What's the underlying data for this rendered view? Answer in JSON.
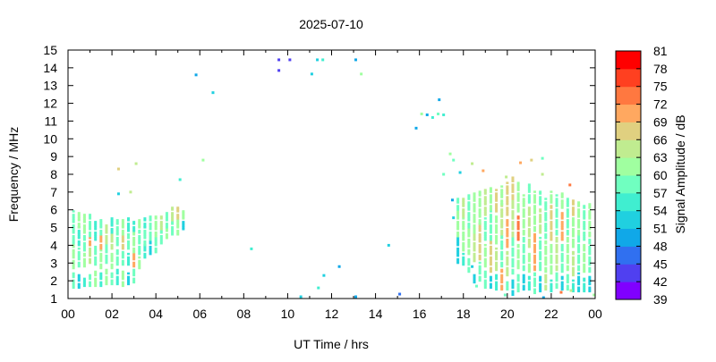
{
  "chart_data": {
    "type": "scatter",
    "title": "2025-07-10",
    "xlabel": "UT Time / hrs",
    "ylabel": "Frequency / MHz",
    "xlim": [
      0,
      24
    ],
    "ylim": [
      1,
      15
    ],
    "x_tick_labels": [
      "00",
      "02",
      "04",
      "06",
      "08",
      "10",
      "12",
      "14",
      "16",
      "18",
      "20",
      "22",
      "00"
    ],
    "y_tick_labels": [
      "1",
      "2",
      "3",
      "4",
      "5",
      "6",
      "7",
      "8",
      "9",
      "10",
      "11",
      "12",
      "13",
      "14",
      "15"
    ],
    "grid": false,
    "colorbar": {
      "label": "Signal Amplitude / dB",
      "range": [
        39,
        81
      ],
      "tick_labels": [
        "39",
        "42",
        "45",
        "48",
        "51",
        "54",
        "57",
        "60",
        "63",
        "66",
        "69",
        "72",
        "75",
        "78",
        "81"
      ],
      "colors": [
        "#8000ff",
        "#5040f0",
        "#3070f0",
        "#10a8e8",
        "#20d0e0",
        "#40eed0",
        "#70ffc0",
        "#a0ffa0",
        "#c0ec90",
        "#e0d080",
        "#ffa860",
        "#ff7840",
        "#ff4020",
        "#ff0000"
      ]
    },
    "columns": [
      {
        "t": 0.25,
        "segs": [
          [
            1.5,
            2.4,
            57
          ],
          [
            2.6,
            4.0,
            60
          ],
          [
            4.0,
            5.9,
            57
          ]
        ]
      },
      {
        "t": 0.5,
        "segs": [
          [
            1.6,
            2.3,
            51
          ],
          [
            2.8,
            3.8,
            57
          ],
          [
            4.0,
            5.0,
            54
          ],
          [
            5.0,
            5.8,
            60
          ]
        ]
      },
      {
        "t": 0.75,
        "segs": [
          [
            1.6,
            2.1,
            54
          ],
          [
            2.7,
            3.5,
            60
          ],
          [
            3.6,
            4.5,
            57
          ],
          [
            4.6,
            5.8,
            60
          ]
        ]
      },
      {
        "t": 1.0,
        "segs": [
          [
            1.7,
            2.3,
            57
          ],
          [
            3.0,
            4.0,
            63
          ],
          [
            4.0,
            4.4,
            69
          ],
          [
            4.5,
            5.7,
            57
          ]
        ]
      },
      {
        "t": 1.25,
        "segs": [
          [
            1.6,
            2.5,
            60
          ],
          [
            2.8,
            4.0,
            57
          ],
          [
            4.2,
            5.3,
            54
          ]
        ]
      },
      {
        "t": 1.5,
        "segs": [
          [
            1.7,
            2.4,
            54
          ],
          [
            2.7,
            3.7,
            60
          ],
          [
            3.8,
            4.5,
            69
          ],
          [
            4.6,
            5.5,
            57
          ]
        ]
      },
      {
        "t": 1.75,
        "segs": [
          [
            1.7,
            2.6,
            60
          ],
          [
            2.9,
            4.0,
            57
          ],
          [
            4.0,
            5.2,
            63
          ]
        ]
      },
      {
        "t": 2.0,
        "segs": [
          [
            1.8,
            2.4,
            57
          ],
          [
            2.7,
            3.5,
            60
          ],
          [
            3.8,
            4.6,
            63
          ],
          [
            4.7,
            5.6,
            54
          ]
        ]
      },
      {
        "t": 2.25,
        "segs": [
          [
            1.7,
            2.6,
            54
          ],
          [
            2.8,
            3.7,
            57
          ],
          [
            3.9,
            5.4,
            57
          ]
        ]
      },
      {
        "t": 2.5,
        "segs": [
          [
            1.7,
            2.6,
            60
          ],
          [
            2.9,
            3.6,
            57
          ],
          [
            3.8,
            4.5,
            66
          ],
          [
            4.6,
            5.5,
            60
          ]
        ]
      },
      {
        "t": 2.75,
        "segs": [
          [
            1.7,
            2.4,
            51
          ],
          [
            2.8,
            3.5,
            54
          ],
          [
            3.7,
            4.6,
            57
          ],
          [
            4.7,
            5.5,
            54
          ]
        ]
      },
      {
        "t": 3.0,
        "segs": [
          [
            1.9,
            2.6,
            57
          ],
          [
            2.8,
            3.5,
            69
          ],
          [
            3.6,
            4.8,
            60
          ],
          [
            4.8,
            5.3,
            54
          ]
        ]
      },
      {
        "t": 3.25,
        "segs": [
          [
            2.6,
            3.3,
            60
          ],
          [
            3.4,
            4.8,
            57
          ],
          [
            4.9,
            5.4,
            60
          ]
        ]
      },
      {
        "t": 3.5,
        "segs": [
          [
            3.3,
            4.0,
            54
          ],
          [
            4.0,
            5.0,
            57
          ],
          [
            5.0,
            5.5,
            54
          ]
        ]
      },
      {
        "t": 3.75,
        "segs": [
          [
            3.4,
            4.2,
            51
          ],
          [
            4.2,
            5.2,
            57
          ],
          [
            5.3,
            5.6,
            57
          ]
        ]
      },
      {
        "t": 4.0,
        "segs": [
          [
            3.6,
            4.5,
            57
          ],
          [
            4.5,
            5.6,
            60
          ]
        ]
      },
      {
        "t": 4.25,
        "segs": [
          [
            4.0,
            4.8,
            57
          ],
          [
            4.8,
            5.6,
            63
          ]
        ]
      },
      {
        "t": 4.5,
        "segs": [
          [
            4.4,
            5.0,
            60
          ],
          [
            5.0,
            5.9,
            57
          ]
        ]
      },
      {
        "t": 4.75,
        "segs": [
          [
            4.5,
            5.3,
            57
          ],
          [
            5.3,
            6.1,
            63
          ]
        ]
      },
      {
        "t": 5.0,
        "segs": [
          [
            4.6,
            5.5,
            60
          ],
          [
            5.5,
            6.1,
            66
          ]
        ]
      },
      {
        "t": 5.25,
        "segs": [
          [
            4.8,
            5.4,
            51
          ],
          [
            5.4,
            5.9,
            60
          ]
        ]
      },
      {
        "t": 17.75,
        "segs": [
          [
            3.0,
            4.5,
            51
          ],
          [
            4.5,
            6.0,
            60
          ],
          [
            6.0,
            6.6,
            57
          ]
        ]
      },
      {
        "t": 18.0,
        "segs": [
          [
            2.8,
            3.5,
            54
          ],
          [
            3.6,
            5.5,
            60
          ],
          [
            5.5,
            6.7,
            63
          ]
        ]
      },
      {
        "t": 18.25,
        "segs": [
          [
            2.5,
            3.2,
            57
          ],
          [
            3.5,
            5.0,
            60
          ],
          [
            5.0,
            6.8,
            57
          ]
        ]
      },
      {
        "t": 18.5,
        "segs": [
          [
            1.8,
            2.4,
            51
          ],
          [
            3.0,
            4.6,
            63
          ],
          [
            4.6,
            6.9,
            60
          ]
        ]
      },
      {
        "t": 18.75,
        "segs": [
          [
            2.0,
            3.0,
            57
          ],
          [
            3.2,
            5.2,
            66
          ],
          [
            5.2,
            7.0,
            60
          ]
        ]
      },
      {
        "t": 19.0,
        "segs": [
          [
            1.5,
            2.5,
            57
          ],
          [
            2.7,
            4.0,
            60
          ],
          [
            4.2,
            5.5,
            57
          ],
          [
            5.6,
            7.1,
            63
          ]
        ]
      },
      {
        "t": 19.25,
        "segs": [
          [
            1.6,
            2.2,
            51
          ],
          [
            2.5,
            4.2,
            66
          ],
          [
            4.3,
            6.0,
            57
          ],
          [
            6.0,
            7.2,
            60
          ]
        ]
      },
      {
        "t": 19.5,
        "segs": [
          [
            1.4,
            2.3,
            54
          ],
          [
            2.5,
            3.8,
            63
          ],
          [
            4.0,
            5.6,
            60
          ],
          [
            5.8,
            7.1,
            66
          ]
        ]
      },
      {
        "t": 19.75,
        "segs": [
          [
            1.5,
            2.6,
            69
          ],
          [
            2.8,
            4.5,
            57
          ],
          [
            4.6,
            6.3,
            63
          ],
          [
            6.3,
            7.3,
            60
          ]
        ]
      },
      {
        "t": 20.0,
        "segs": [
          [
            1.4,
            2.0,
            57
          ],
          [
            2.2,
            3.6,
            63
          ],
          [
            3.8,
            5.4,
            69
          ],
          [
            5.6,
            7.5,
            66
          ]
        ]
      },
      {
        "t": 20.25,
        "segs": [
          [
            1.2,
            2.1,
            51
          ],
          [
            2.4,
            4.4,
            57
          ],
          [
            4.5,
            6.5,
            63
          ],
          [
            6.6,
            7.8,
            66
          ]
        ]
      },
      {
        "t": 20.5,
        "segs": [
          [
            1.3,
            2.3,
            57
          ],
          [
            2.6,
            4.0,
            60
          ],
          [
            4.2,
            5.6,
            72
          ],
          [
            5.8,
            7.5,
            60
          ]
        ]
      },
      {
        "t": 20.75,
        "segs": [
          [
            1.5,
            2.4,
            51
          ],
          [
            2.6,
            4.4,
            57
          ],
          [
            4.6,
            6.8,
            60
          ]
        ]
      },
      {
        "t": 21.0,
        "segs": [
          [
            1.4,
            2.2,
            54
          ],
          [
            2.4,
            3.6,
            60
          ],
          [
            3.8,
            6.2,
            63
          ],
          [
            6.3,
            7.4,
            57
          ]
        ]
      },
      {
        "t": 21.25,
        "segs": [
          [
            1.3,
            2.4,
            57
          ],
          [
            2.6,
            4.6,
            69
          ],
          [
            4.8,
            7.0,
            60
          ]
        ]
      },
      {
        "t": 21.5,
        "segs": [
          [
            1.3,
            2.2,
            51
          ],
          [
            2.5,
            4.4,
            57
          ],
          [
            4.6,
            6.0,
            63
          ],
          [
            6.2,
            7.0,
            57
          ]
        ]
      },
      {
        "t": 21.75,
        "segs": [
          [
            1.5,
            2.3,
            63
          ],
          [
            2.5,
            4.2,
            60
          ],
          [
            4.4,
            6.6,
            57
          ]
        ]
      },
      {
        "t": 22.0,
        "segs": [
          [
            1.3,
            2.0,
            54
          ],
          [
            2.3,
            4.0,
            60
          ],
          [
            4.2,
            6.2,
            66
          ],
          [
            6.3,
            7.0,
            60
          ]
        ]
      },
      {
        "t": 22.25,
        "segs": [
          [
            1.6,
            2.4,
            57
          ],
          [
            2.6,
            4.4,
            63
          ],
          [
            4.6,
            6.8,
            57
          ]
        ]
      },
      {
        "t": 22.5,
        "segs": [
          [
            1.4,
            2.2,
            51
          ],
          [
            2.4,
            4.0,
            57
          ],
          [
            4.2,
            5.8,
            69
          ],
          [
            6.0,
            6.9,
            60
          ]
        ]
      },
      {
        "t": 22.75,
        "segs": [
          [
            1.5,
            2.3,
            57
          ],
          [
            2.6,
            4.4,
            60
          ],
          [
            4.6,
            6.7,
            57
          ]
        ]
      },
      {
        "t": 23.0,
        "segs": [
          [
            1.3,
            2.0,
            54
          ],
          [
            2.2,
            3.6,
            63
          ],
          [
            3.8,
            5.5,
            60
          ],
          [
            5.6,
            6.5,
            66
          ]
        ]
      },
      {
        "t": 23.25,
        "segs": [
          [
            1.4,
            2.4,
            51
          ],
          [
            2.6,
            4.5,
            57
          ],
          [
            4.6,
            6.4,
            60
          ]
        ]
      },
      {
        "t": 23.5,
        "segs": [
          [
            1.3,
            2.1,
            54
          ],
          [
            2.4,
            4.0,
            60
          ],
          [
            4.2,
            6.2,
            57
          ]
        ]
      },
      {
        "t": 23.75,
        "segs": [
          [
            1.4,
            2.2,
            51
          ],
          [
            2.5,
            4.3,
            57
          ],
          [
            4.5,
            6.3,
            60
          ]
        ]
      }
    ],
    "points": [
      [
        5.83,
        13.6,
        49
      ],
      [
        6.6,
        12.6,
        53
      ],
      [
        6.15,
        8.8,
        60
      ],
      [
        5.1,
        7.7,
        55
      ],
      [
        2.3,
        8.3,
        66
      ],
      [
        3.1,
        8.6,
        63
      ],
      [
        2.3,
        6.9,
        51
      ],
      [
        2.85,
        7.0,
        63
      ],
      [
        9.6,
        14.45,
        43
      ],
      [
        10.1,
        14.45,
        43
      ],
      [
        9.6,
        13.85,
        43
      ],
      [
        11.35,
        14.45,
        53
      ],
      [
        11.6,
        14.45,
        56
      ],
      [
        11.1,
        13.65,
        53
      ],
      [
        13.1,
        14.45,
        50
      ],
      [
        13.35,
        13.65,
        60
      ],
      [
        8.35,
        3.8,
        56
      ],
      [
        14.6,
        4.0,
        53
      ],
      [
        10.6,
        1.1,
        51
      ],
      [
        11.4,
        1.6,
        54
      ],
      [
        11.65,
        2.3,
        53
      ],
      [
        12.35,
        2.8,
        50
      ],
      [
        13.1,
        1.1,
        49
      ],
      [
        15.1,
        1.25,
        46
      ],
      [
        16.9,
        12.2,
        49
      ],
      [
        15.85,
        10.6,
        48
      ],
      [
        16.1,
        11.4,
        60
      ],
      [
        16.35,
        11.35,
        49
      ],
      [
        16.6,
        11.2,
        55
      ],
      [
        16.85,
        11.4,
        57
      ],
      [
        17.1,
        11.35,
        56
      ],
      [
        17.4,
        9.15,
        61
      ],
      [
        17.55,
        8.8,
        58
      ],
      [
        17.1,
        8.0,
        58
      ],
      [
        17.85,
        8.1,
        53
      ],
      [
        18.4,
        8.6,
        63
      ],
      [
        18.9,
        8.2,
        70
      ],
      [
        17.5,
        6.55,
        48
      ],
      [
        17.55,
        5.55,
        53
      ],
      [
        18.4,
        2.8,
        51
      ],
      [
        18.6,
        1.7,
        57
      ],
      [
        19.9,
        1.2,
        57
      ],
      [
        19.95,
        7.85,
        63
      ],
      [
        20.6,
        8.65,
        69
      ],
      [
        21.1,
        8.8,
        66
      ],
      [
        21.6,
        8.9,
        57
      ],
      [
        21.6,
        8.0,
        63
      ],
      [
        22.45,
        1.35,
        72
      ],
      [
        22.85,
        7.4,
        72
      ],
      [
        21.65,
        1.05,
        49
      ],
      [
        22.9,
        1.45,
        63
      ],
      [
        23.95,
        1.2,
        60
      ]
    ]
  }
}
